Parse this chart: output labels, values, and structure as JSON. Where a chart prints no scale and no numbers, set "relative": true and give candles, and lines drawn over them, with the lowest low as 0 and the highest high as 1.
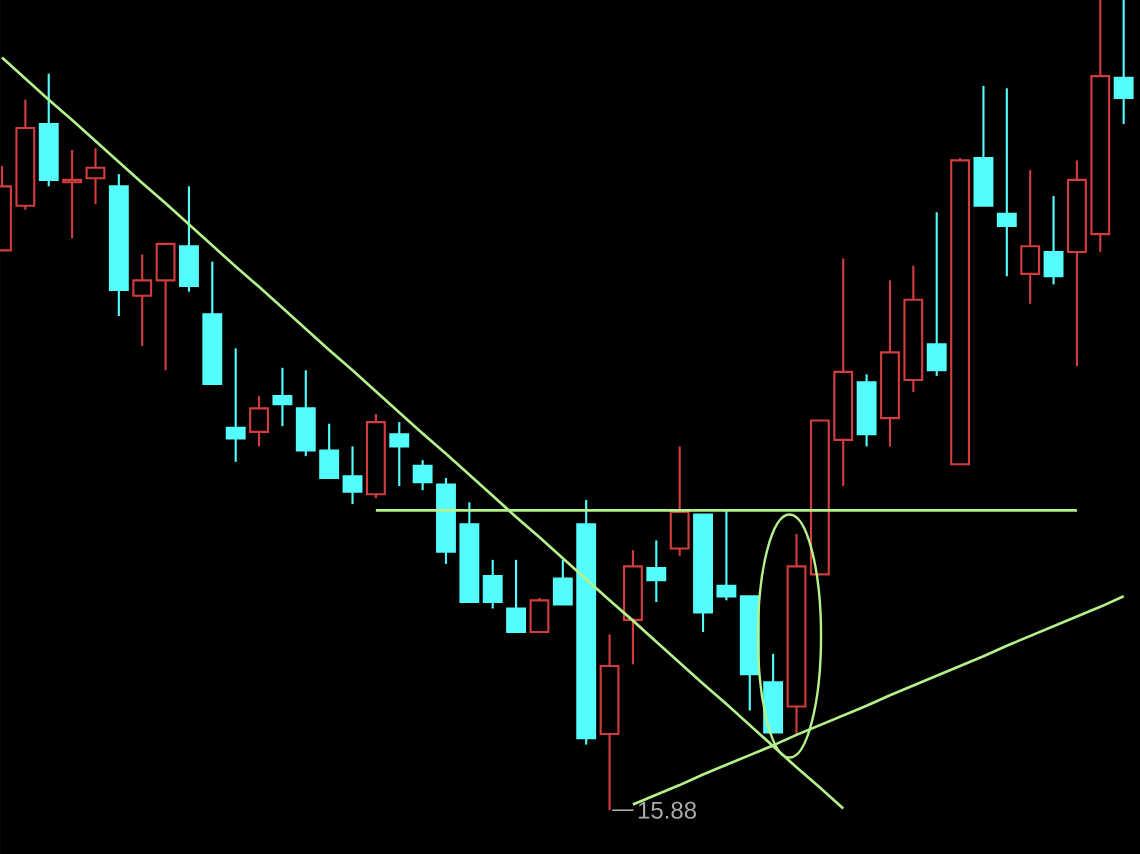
{
  "chart_data": {
    "type": "candlestick",
    "relative": true,
    "categories": [
      null,
      null,
      null,
      null,
      null,
      null,
      null,
      null,
      null,
      null,
      null,
      null,
      null,
      null,
      null,
      null,
      null,
      null,
      null,
      null,
      null,
      null,
      null,
      null,
      null,
      null,
      null,
      null,
      null,
      null,
      null,
      null,
      null,
      null,
      null,
      null,
      null,
      null,
      null,
      null,
      null,
      null,
      null,
      null,
      null,
      null,
      null,
      null,
      null
    ],
    "ohlc": [
      [
        0.691,
        0.795,
        0.691,
        0.77
      ],
      [
        0.746,
        0.877,
        0.741,
        0.842
      ],
      [
        0.847,
        0.909,
        0.77,
        0.778
      ],
      [
        0.775,
        0.815,
        0.706,
        0.778
      ],
      [
        0.78,
        0.817,
        0.748,
        0.793
      ],
      [
        0.77,
        0.785,
        0.61,
        0.642
      ],
      [
        0.635,
        0.686,
        0.573,
        0.654
      ],
      [
        0.654,
        0.699,
        0.543,
        0.699
      ],
      [
        0.696,
        0.77,
        0.64,
        0.647
      ],
      [
        0.612,
        0.677,
        0.526,
        0.526
      ],
      [
        0.472,
        0.57,
        0.43,
        0.459
      ],
      [
        0.467,
        0.511,
        0.449,
        0.496
      ],
      [
        0.511,
        0.546,
        0.474,
        0.501
      ],
      [
        0.496,
        0.543,
        0.437,
        0.444
      ],
      [
        0.444,
        0.477,
        0.41,
        0.41
      ],
      [
        0.412,
        0.449,
        0.378,
        0.393
      ],
      [
        0.39,
        0.489,
        0.385,
        0.479
      ],
      [
        0.464,
        0.479,
        0.4,
        0.449
      ],
      [
        0.425,
        0.432,
        0.395,
        0.405
      ],
      [
        0.402,
        0.41,
        0.304,
        0.319
      ],
      [
        0.353,
        0.38,
        0.257,
        0.257
      ],
      [
        0.289,
        0.309,
        0.249,
        0.257
      ],
      [
        0.249,
        0.309,
        0.22,
        0.22
      ],
      [
        0.22,
        0.262,
        0.22,
        0.259
      ],
      [
        0.286,
        0.309,
        0.254,
        0.254
      ],
      [
        0.353,
        0.383,
        0.081,
        0.089
      ],
      [
        0.094,
        0.217,
        0.0,
        0.178
      ],
      [
        0.235,
        0.321,
        0.18,
        0.301
      ],
      [
        0.299,
        0.333,
        0.257,
        0.284
      ],
      [
        0.323,
        0.449,
        0.314,
        0.368
      ],
      [
        0.365,
        0.365,
        0.22,
        0.244
      ],
      [
        0.277,
        0.37,
        0.259,
        0.264
      ],
      [
        0.264,
        0.264,
        0.123,
        0.168
      ],
      [
        0.158,
        0.193,
        0.096,
        0.096
      ],
      [
        0.128,
        0.341,
        0.094,
        0.301
      ],
      [
        0.291,
        0.481,
        0.291,
        0.481
      ],
      [
        0.457,
        0.681,
        0.4,
        0.541
      ],
      [
        0.528,
        0.538,
        0.449,
        0.464
      ],
      [
        0.484,
        0.654,
        0.449,
        0.565
      ],
      [
        0.531,
        0.672,
        0.516,
        0.63
      ],
      [
        0.575,
        0.738,
        0.536,
        0.543
      ],
      [
        0.427,
        0.805,
        0.427,
        0.802
      ],
      [
        0.805,
        0.894,
        0.746,
        0.746
      ],
      [
        0.736,
        0.891,
        0.659,
        0.721
      ],
      [
        0.662,
        0.79,
        0.625,
        0.696
      ],
      [
        0.689,
        0.758,
        0.649,
        0.659
      ],
      [
        0.689,
        0.802,
        0.548,
        0.778
      ],
      [
        0.711,
        1.0,
        0.689,
        0.906
      ],
      [
        0.904,
        1.0,
        0.847,
        0.879
      ]
    ],
    "series": [
      {
        "type": "line",
        "color": "#b4f08c",
        "values": [
          0.929,
          0.903,
          0.877,
          0.852,
          0.826,
          0.8,
          0.774,
          0.749,
          0.723,
          0.697,
          0.671,
          0.646,
          0.62,
          0.594,
          0.568,
          0.543,
          0.517,
          0.491,
          0.465,
          0.44,
          0.414,
          0.388,
          0.362,
          0.337,
          0.311,
          0.285,
          0.259,
          0.234,
          0.208,
          0.182,
          0.156,
          0.131,
          0.105,
          0.079,
          0.053,
          0.028,
          0.002,
          null,
          null,
          null,
          null,
          null,
          null,
          null,
          null,
          null,
          null,
          null,
          null
        ]
      },
      {
        "type": "line",
        "color": "#b4f08c",
        "values": [
          null,
          null,
          null,
          null,
          null,
          null,
          null,
          null,
          null,
          null,
          null,
          null,
          null,
          null,
          null,
          null,
          0.37,
          0.37,
          0.37,
          0.37,
          0.37,
          0.37,
          0.37,
          0.37,
          0.37,
          0.37,
          0.37,
          0.37,
          0.37,
          0.37,
          0.37,
          0.37,
          0.37,
          0.37,
          0.37,
          0.37,
          0.37,
          0.37,
          0.37,
          0.37,
          0.37,
          0.37,
          0.37,
          0.37,
          0.37,
          0.37,
          0.37,
          null,
          null
        ]
      },
      {
        "type": "line",
        "color": "#b4f08c",
        "values": [
          null,
          null,
          null,
          null,
          null,
          null,
          null,
          null,
          null,
          null,
          null,
          null,
          null,
          null,
          null,
          null,
          null,
          null,
          null,
          null,
          null,
          null,
          null,
          null,
          null,
          null,
          null,
          0.007,
          0.019,
          0.031,
          0.044,
          0.056,
          0.068,
          0.08,
          0.093,
          0.105,
          0.117,
          0.129,
          0.142,
          0.154,
          0.166,
          0.178,
          0.19,
          0.203,
          0.215,
          0.227,
          0.239,
          0.251,
          0.264
        ]
      }
    ],
    "annotations": [
      "15.88"
    ]
  }
}
